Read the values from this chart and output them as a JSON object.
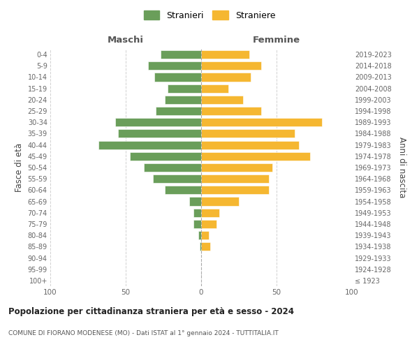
{
  "age_groups": [
    "100+",
    "95-99",
    "90-94",
    "85-89",
    "80-84",
    "75-79",
    "70-74",
    "65-69",
    "60-64",
    "55-59",
    "50-54",
    "45-49",
    "40-44",
    "35-39",
    "30-34",
    "25-29",
    "20-24",
    "15-19",
    "10-14",
    "5-9",
    "0-4"
  ],
  "birth_years": [
    "≤ 1923",
    "1924-1928",
    "1929-1933",
    "1934-1938",
    "1939-1943",
    "1944-1948",
    "1949-1953",
    "1954-1958",
    "1959-1963",
    "1964-1968",
    "1969-1973",
    "1974-1978",
    "1979-1983",
    "1984-1988",
    "1989-1993",
    "1994-1998",
    "1999-2003",
    "2004-2008",
    "2009-2013",
    "2014-2018",
    "2019-2023"
  ],
  "maschi": [
    0,
    0,
    0,
    1,
    2,
    5,
    5,
    8,
    24,
    32,
    38,
    47,
    68,
    55,
    57,
    30,
    24,
    22,
    31,
    35,
    27
  ],
  "femmine": [
    0,
    0,
    0,
    6,
    5,
    10,
    12,
    25,
    45,
    45,
    47,
    72,
    65,
    62,
    80,
    40,
    28,
    18,
    33,
    40,
    32
  ],
  "color_maschi": "#6a9e5a",
  "color_femmine": "#f5b731",
  "title": "Popolazione per cittadinanza straniera per età e sesso - 2024",
  "subtitle": "COMUNE DI FIORANO MODENESE (MO) - Dati ISTAT al 1° gennaio 2024 - TUTTITALIA.IT",
  "xlabel_maschi": "Maschi",
  "xlabel_femmine": "Femmine",
  "ylabel_left": "Fasce di età",
  "ylabel_right": "Anni di nascita",
  "legend_maschi": "Stranieri",
  "legend_femmine": "Straniere",
  "xlim": 100,
  "background_color": "#ffffff",
  "grid_color": "#cccccc"
}
